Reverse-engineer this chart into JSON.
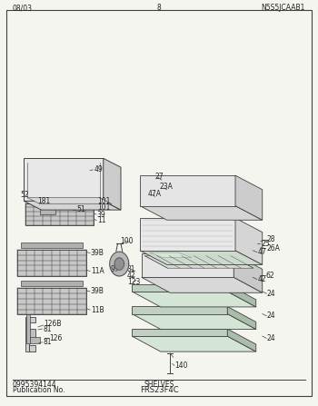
{
  "title_left1": "Publication No.",
  "title_left2": "0995394144",
  "title_center": "FRS23F4C",
  "subtitle_center": "SHELVES",
  "footer_left": "08/03",
  "footer_center": "8",
  "footer_right": "N5S5JCAAB1",
  "bg_color": "#f5f5f0",
  "line_color": "#404040",
  "text_color": "#222222",
  "fig_width": 3.5,
  "fig_height": 4.47,
  "dpi": 100
}
